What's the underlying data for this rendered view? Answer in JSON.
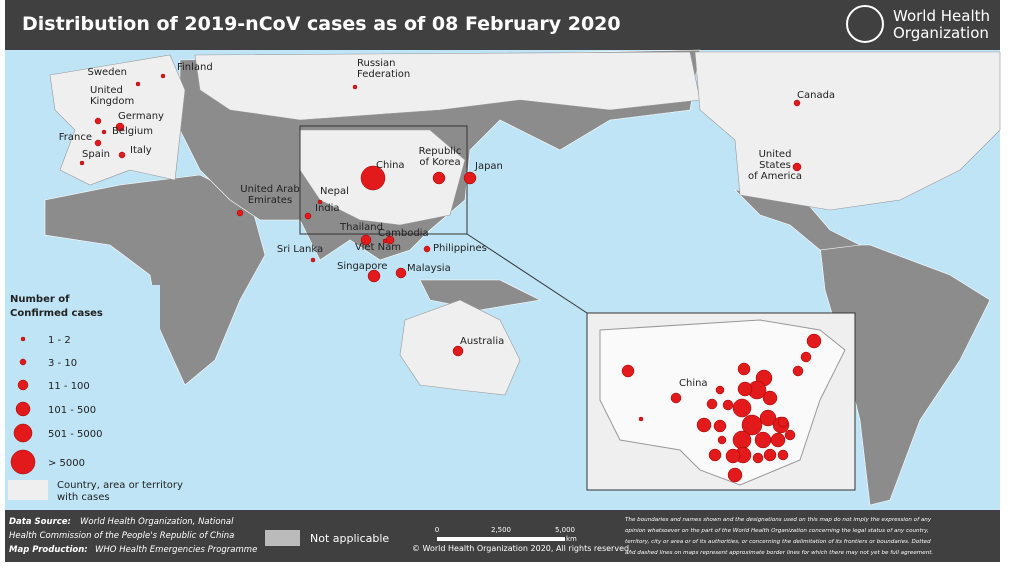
{
  "header": {
    "title": "Distribution of 2019-nCoV cases as of 08 February 2020",
    "logo": [
      "World Health",
      "Organization"
    ]
  },
  "countries": [
    {
      "label": [
        "China"
      ]
    },
    {
      "label": [
        "Russian",
        "Federation"
      ]
    },
    {
      "label": [
        "Finland"
      ]
    },
    {
      "label": [
        "Sweden"
      ]
    },
    {
      "label": [
        "United",
        "Kingdom"
      ]
    },
    {
      "label": [
        "Germany"
      ]
    },
    {
      "label": [
        "Belgium"
      ]
    },
    {
      "label": [
        "France"
      ]
    },
    {
      "label": [
        "Spain"
      ]
    },
    {
      "label": [
        "Italy"
      ]
    },
    {
      "label": [
        "United Arab",
        "Emirates"
      ]
    },
    {
      "label": [
        "Nepal"
      ]
    },
    {
      "label": [
        "India"
      ]
    },
    {
      "label": [
        "Sri Lanka"
      ]
    },
    {
      "label": [
        "Thailand"
      ]
    },
    {
      "label": [
        "Cambodia"
      ]
    },
    {
      "label": [
        "Viet Nam"
      ]
    },
    {
      "label": [
        "Singapore"
      ]
    },
    {
      "label": [
        "Malaysia"
      ]
    },
    {
      "label": [
        "Philippines"
      ]
    },
    {
      "label": [
        "Republic",
        "of Korea"
      ]
    },
    {
      "label": [
        "Japan"
      ]
    },
    {
      "label": [
        "Australia"
      ]
    },
    {
      "label": [
        "Canada"
      ]
    },
    {
      "label": [
        "United",
        "States",
        "of America"
      ]
    }
  ],
  "inset": {
    "label": "China"
  },
  "legend": {
    "title": [
      "Number of",
      "Confirmed cases"
    ],
    "items": [
      "1 - 2",
      "3 - 10",
      "11 - 100",
      "101 - 500",
      "501 - 5000",
      "> 5000"
    ],
    "territory": [
      "Country, area or territory",
      "with cases"
    ]
  },
  "footer": {
    "data_source": {
      "label": "Data Source:",
      "text": [
        "World Health Organization, National",
        "Health Commission of the People's Republic of China"
      ]
    },
    "map_production": {
      "label": "Map Production:",
      "text": "WHO Health Emergencies Programme"
    },
    "not_applicable": "Not applicable",
    "scale": [
      "0",
      "2,500",
      "5,000",
      "km"
    ],
    "copyright": "© World Health Organization 2020, All rights reserved.",
    "disclaimer": [
      "The boundaries and names shown and the designations used on this map do not imply the expression of any",
      "opinion whatsoever on the part of the World Health Organization concerning the legal status of any country,",
      "territory, city or area or of its authorities, or concerning the delimitation of its frontiers or boundaries. Dotted",
      "and dashed lines on maps represent approximate border lines for which there may not yet be full agreement."
    ]
  }
}
